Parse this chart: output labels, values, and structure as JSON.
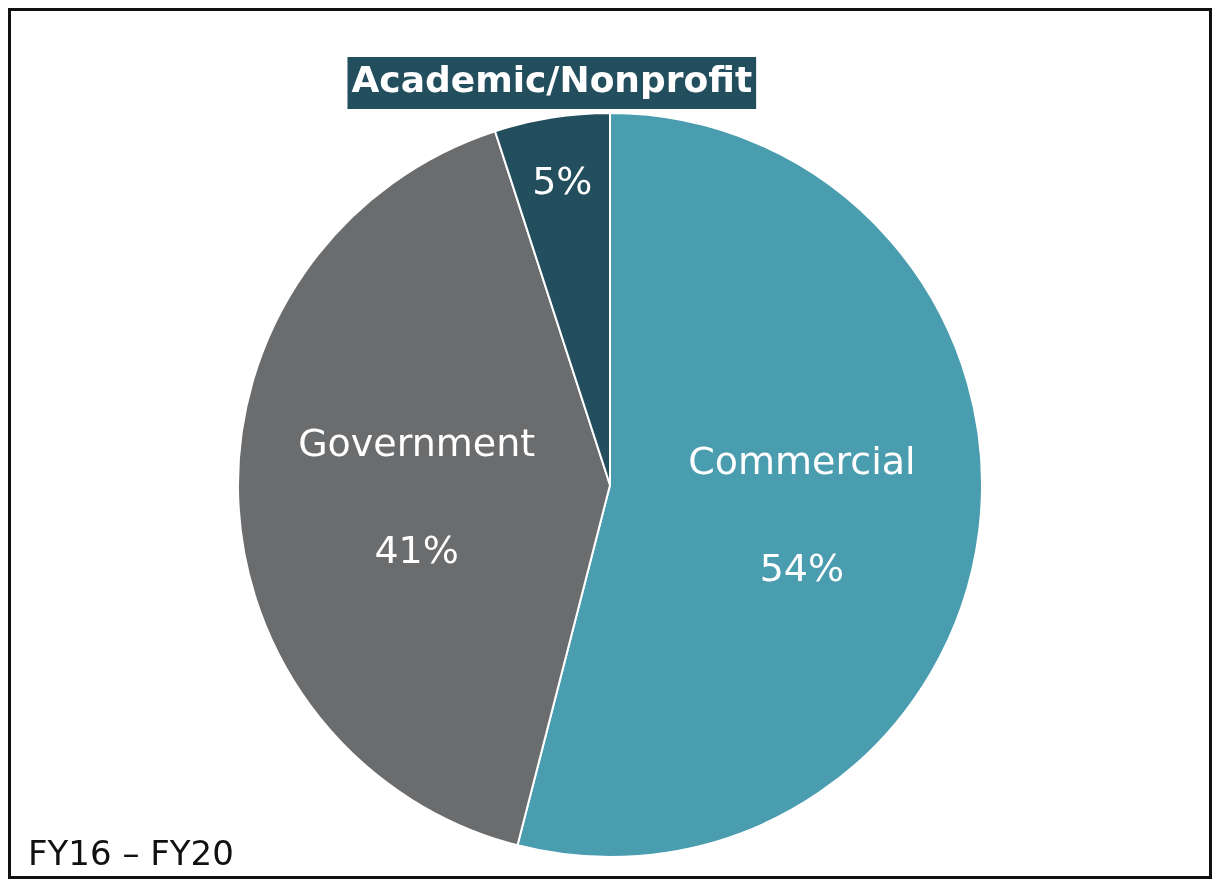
{
  "chart_data": {
    "type": "pie",
    "categories": [
      "Commercial",
      "Government",
      "Academic/Nonprofit"
    ],
    "values": [
      54,
      41,
      5
    ],
    "colors": [
      "#4a9caf",
      "#6b6c6e",
      "#234e5e"
    ],
    "value_labels": [
      "54%",
      "41%",
      "5%"
    ],
    "annotations": [
      "FY16 – FY20"
    ]
  }
}
